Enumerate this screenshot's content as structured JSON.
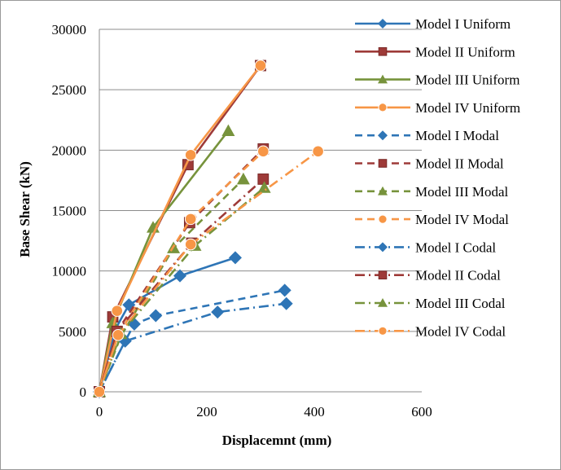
{
  "chart_data": {
    "type": "line",
    "xlabel": "Displacemnt (mm)",
    "ylabel": "Base Shear (kN)",
    "xlim": [
      0,
      600
    ],
    "ylim": [
      0,
      30000
    ],
    "x_ticks": [
      "0",
      "200",
      "400",
      "600"
    ],
    "y_ticks": [
      "0",
      "5000",
      "10000",
      "15000",
      "20000",
      "25000",
      "30000"
    ],
    "grid": "horizontal",
    "legend_position": "right",
    "series": [
      {
        "name": "Model I Uniform",
        "color": "#2e75b6",
        "dash": "solid",
        "marker": "diamond",
        "points": [
          [
            0,
            0
          ],
          [
            30,
            5200
          ],
          [
            55,
            7200
          ],
          [
            150,
            9600
          ],
          [
            253,
            11100
          ]
        ]
      },
      {
        "name": "Model II Uniform",
        "color": "#9e3a38",
        "dash": "solid",
        "marker": "square",
        "points": [
          [
            0,
            0
          ],
          [
            25,
            6200
          ],
          [
            165,
            18800
          ],
          [
            300,
            27000
          ]
        ]
      },
      {
        "name": "Model III Uniform",
        "color": "#77933c",
        "dash": "solid",
        "marker": "triangle",
        "points": [
          [
            0,
            0
          ],
          [
            25,
            5700
          ],
          [
            100,
            13600
          ],
          [
            240,
            21600
          ]
        ]
      },
      {
        "name": "Model IV Uniform",
        "color": "#f79646",
        "dash": "solid",
        "marker": "circle",
        "points": [
          [
            0,
            0
          ],
          [
            33,
            6700
          ],
          [
            170,
            19600
          ],
          [
            300,
            27000
          ]
        ]
      },
      {
        "name": "Model I Modal",
        "color": "#2e75b6",
        "dash": "dash",
        "marker": "diamond",
        "points": [
          [
            0,
            0
          ],
          [
            48,
            4200
          ],
          [
            65,
            5600
          ],
          [
            105,
            6300
          ],
          [
            345,
            8400
          ]
        ]
      },
      {
        "name": "Model II Modal",
        "color": "#9e3a38",
        "dash": "dash",
        "marker": "square",
        "points": [
          [
            0,
            0
          ],
          [
            33,
            5000
          ],
          [
            168,
            14000
          ],
          [
            305,
            20100
          ]
        ]
      },
      {
        "name": "Model III Modal",
        "color": "#77933c",
        "dash": "dash",
        "marker": "triangle",
        "points": [
          [
            0,
            0
          ],
          [
            40,
            4600
          ],
          [
            138,
            11900
          ],
          [
            268,
            17600
          ]
        ]
      },
      {
        "name": "Model IV Modal",
        "color": "#f79646",
        "dash": "dash",
        "marker": "circle",
        "points": [
          [
            0,
            0
          ],
          [
            35,
            4700
          ],
          [
            170,
            14300
          ],
          [
            305,
            19900
          ]
        ]
      },
      {
        "name": "Model I Codal",
        "color": "#2e75b6",
        "dash": "dashdot",
        "marker": "diamond",
        "points": [
          [
            0,
            0
          ],
          [
            48,
            4200
          ],
          [
            220,
            6600
          ],
          [
            348,
            7300
          ]
        ]
      },
      {
        "name": "Model II Codal",
        "color": "#9e3a38",
        "dash": "dashdot",
        "marker": "square",
        "points": [
          [
            0,
            0
          ],
          [
            33,
            5000
          ],
          [
            172,
            12300
          ],
          [
            305,
            17600
          ]
        ]
      },
      {
        "name": "Model III Codal",
        "color": "#77933c",
        "dash": "dashdot",
        "marker": "triangle",
        "points": [
          [
            0,
            0
          ],
          [
            40,
            4800
          ],
          [
            178,
            12100
          ],
          [
            307,
            16900
          ]
        ]
      },
      {
        "name": "Model IV Codal",
        "color": "#f79646",
        "dash": "dashdot",
        "marker": "circle",
        "points": [
          [
            0,
            0
          ],
          [
            35,
            4700
          ],
          [
            170,
            12200
          ],
          [
            407,
            19900
          ]
        ]
      }
    ]
  }
}
